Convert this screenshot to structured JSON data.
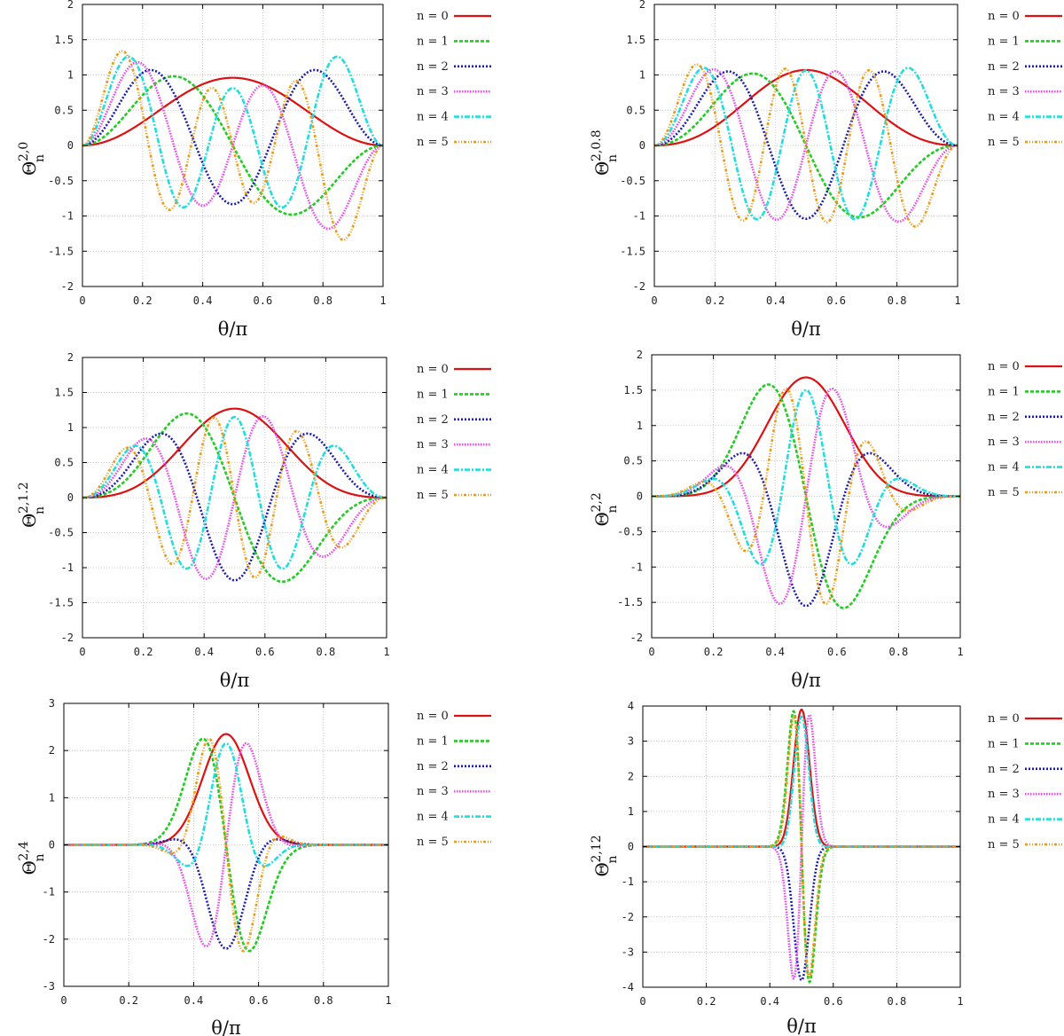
{
  "chart_data": [
    {
      "type": "line",
      "panel": "top-left",
      "ylabel": "Θ",
      "ylabel_sub": "n",
      "ylabel_sup": "2,0",
      "xlabel": "θ/π",
      "xlim": [
        0,
        1
      ],
      "ylim": [
        -2,
        2
      ],
      "xticks": [
        0,
        0.2,
        0.4,
        0.6,
        0.8,
        1
      ],
      "yticks": [
        -2,
        -1.5,
        -1,
        -0.5,
        0,
        0.5,
        1,
        1.5,
        2
      ],
      "grid": true,
      "legend": "right",
      "gauss": 0,
      "amp": [
        0.96,
        0.98,
        1.07,
        1.18,
        1.26,
        1.34
      ],
      "series": [
        {
          "name": "n = 0",
          "color": "#dd1111"
        },
        {
          "name": "n = 1",
          "color": "#22cc22"
        },
        {
          "name": "n = 2",
          "color": "#1a1ab5"
        },
        {
          "name": "n = 3",
          "color": "#ee44ee"
        },
        {
          "name": "n = 4",
          "color": "#22dddd"
        },
        {
          "name": "n = 5",
          "color": "#ee9911"
        }
      ]
    },
    {
      "type": "line",
      "panel": "top-right",
      "ylabel": "Θ",
      "ylabel_sub": "n",
      "ylabel_sup": "2,0.8",
      "xlabel": "θ/π",
      "xlim": [
        0,
        1
      ],
      "ylim": [
        -2,
        2
      ],
      "xticks": [
        0,
        0.2,
        0.4,
        0.6,
        0.8,
        1
      ],
      "yticks": [
        -2,
        -1.5,
        -1,
        -0.5,
        0,
        0.5,
        1,
        1.5,
        2
      ],
      "grid": true,
      "legend": "right",
      "gauss": 0.8,
      "amp": [
        1.07,
        1.02,
        1.05,
        1.08,
        1.1,
        1.15
      ],
      "series": [
        {
          "name": "n = 0",
          "color": "#dd1111"
        },
        {
          "name": "n = 1",
          "color": "#22cc22"
        },
        {
          "name": "n = 2",
          "color": "#1a1ab5"
        },
        {
          "name": "n = 3",
          "color": "#ee44ee"
        },
        {
          "name": "n = 4",
          "color": "#22dddd"
        },
        {
          "name": "n = 5",
          "color": "#ee9911"
        }
      ]
    },
    {
      "type": "line",
      "panel": "middle-left",
      "ylabel": "Θ",
      "ylabel_sub": "n",
      "ylabel_sup": "2,1.2",
      "xlabel": "θ/π",
      "xlim": [
        0,
        1
      ],
      "ylim": [
        -2,
        2
      ],
      "xticks": [
        0,
        0.2,
        0.4,
        0.6,
        0.8,
        1
      ],
      "yticks": [
        -2,
        -1.5,
        -1,
        -0.5,
        0,
        0.5,
        1,
        1.5,
        2
      ],
      "grid": true,
      "legend": "right",
      "gauss": 1.2,
      "amp": [
        1.27,
        1.2,
        1.18,
        1.16,
        1.15,
        1.14
      ],
      "series": [
        {
          "name": "n = 0",
          "color": "#dd1111"
        },
        {
          "name": "n = 1",
          "color": "#22cc22"
        },
        {
          "name": "n = 2",
          "color": "#1a1ab5"
        },
        {
          "name": "n = 3",
          "color": "#ee44ee"
        },
        {
          "name": "n = 4",
          "color": "#22dddd"
        },
        {
          "name": "n = 5",
          "color": "#ee9911"
        }
      ]
    },
    {
      "type": "line",
      "panel": "middle-right",
      "ylabel": "Θ",
      "ylabel_sub": "n",
      "ylabel_sup": "2,2",
      "xlabel": "θ/π",
      "xlim": [
        0,
        1
      ],
      "ylim": [
        -2,
        2
      ],
      "xticks": [
        0,
        0.2,
        0.4,
        0.6,
        0.8,
        1
      ],
      "yticks": [
        -2,
        -1.5,
        -1,
        -0.5,
        0,
        0.5,
        1,
        1.5,
        2
      ],
      "grid": true,
      "legend": "right",
      "gauss": 2,
      "amp": [
        1.68,
        1.58,
        1.55,
        1.52,
        1.5,
        1.52
      ],
      "series": [
        {
          "name": "n = 0",
          "color": "#dd1111"
        },
        {
          "name": "n = 1",
          "color": "#22cc22"
        },
        {
          "name": "n = 2",
          "color": "#1a1ab5"
        },
        {
          "name": "n = 3",
          "color": "#ee44ee"
        },
        {
          "name": "n = 4",
          "color": "#22dddd"
        },
        {
          "name": "n = 5",
          "color": "#ee9911"
        }
      ]
    },
    {
      "type": "line",
      "panel": "bottom-left",
      "ylabel": "Θ",
      "ylabel_sub": "n",
      "ylabel_sup": "2,4",
      "xlabel": "θ/π",
      "xlim": [
        0,
        1
      ],
      "ylim": [
        -3,
        3
      ],
      "xticks": [
        0,
        0.2,
        0.4,
        0.6,
        0.8,
        1
      ],
      "yticks": [
        -3,
        -2,
        -1,
        0,
        1,
        2,
        3
      ],
      "grid": true,
      "legend": "right",
      "gauss": 4,
      "amp": [
        2.35,
        2.25,
        2.2,
        2.15,
        2.15,
        2.25
      ],
      "series": [
        {
          "name": "n = 0",
          "color": "#dd1111"
        },
        {
          "name": "n = 1",
          "color": "#22cc22"
        },
        {
          "name": "n = 2",
          "color": "#1a1ab5"
        },
        {
          "name": "n = 3",
          "color": "#ee44ee"
        },
        {
          "name": "n = 4",
          "color": "#22dddd"
        },
        {
          "name": "n = 5",
          "color": "#ee9911"
        }
      ]
    },
    {
      "type": "line",
      "panel": "bottom-right",
      "ylabel": "Θ",
      "ylabel_sub": "n",
      "ylabel_sup": "2,12",
      "xlabel": "θ/π",
      "xlim": [
        0,
        1
      ],
      "ylim": [
        -4,
        4
      ],
      "xticks": [
        0,
        0.2,
        0.4,
        0.6,
        0.8,
        1
      ],
      "yticks": [
        -4,
        -3,
        -2,
        -1,
        0,
        1,
        2,
        3,
        4
      ],
      "grid": true,
      "legend": "right",
      "gauss": 12,
      "amp": [
        3.9,
        3.85,
        3.8,
        3.75,
        3.7,
        3.7
      ],
      "series": [
        {
          "name": "n = 0",
          "color": "#dd1111"
        },
        {
          "name": "n = 1",
          "color": "#22cc22"
        },
        {
          "name": "n = 2",
          "color": "#1a1ab5"
        },
        {
          "name": "n = 3",
          "color": "#ee44ee"
        },
        {
          "name": "n = 4",
          "color": "#22dddd"
        },
        {
          "name": "n = 5",
          "color": "#ee9911"
        }
      ]
    }
  ]
}
